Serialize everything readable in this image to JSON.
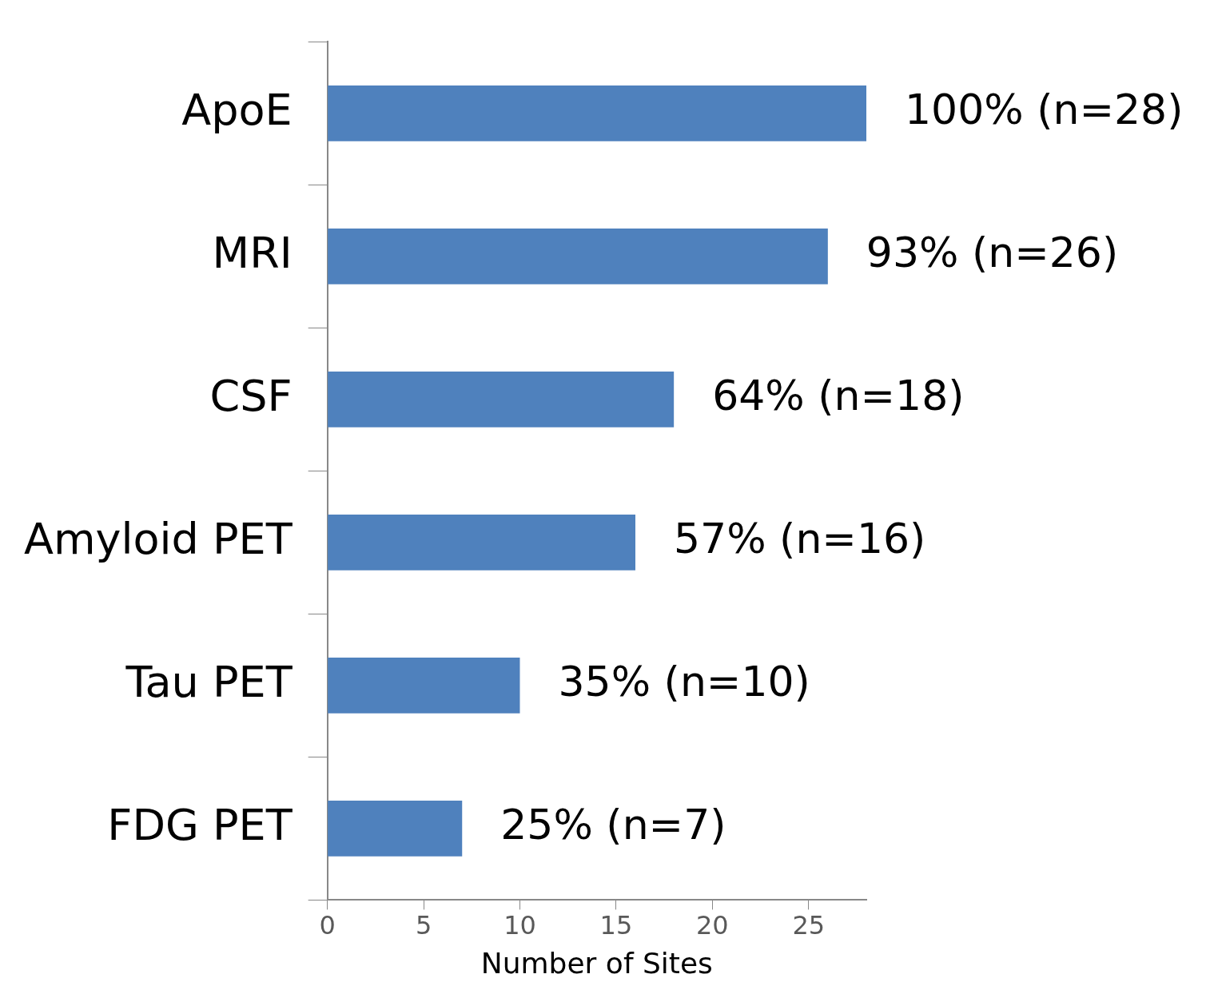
{
  "chart_data": {
    "type": "bar",
    "orientation": "horizontal",
    "xlabel": "Number of Sites",
    "categories": [
      "ApoE",
      "MRI",
      "CSF",
      "Amyloid PET",
      "Tau PET",
      "FDG PET"
    ],
    "values": [
      28,
      26,
      18,
      16,
      10,
      7
    ],
    "value_labels": [
      "100% (n=28)",
      "93% (n=26)",
      "64% (n=18)",
      "57% (n=16)",
      "35% (n=10)",
      "25% (n=7)"
    ],
    "color": "#4f81bd",
    "xlim": [
      0,
      28
    ],
    "xticks": [
      0,
      5,
      10,
      15,
      20,
      25
    ],
    "grid": false,
    "legend": false
  }
}
